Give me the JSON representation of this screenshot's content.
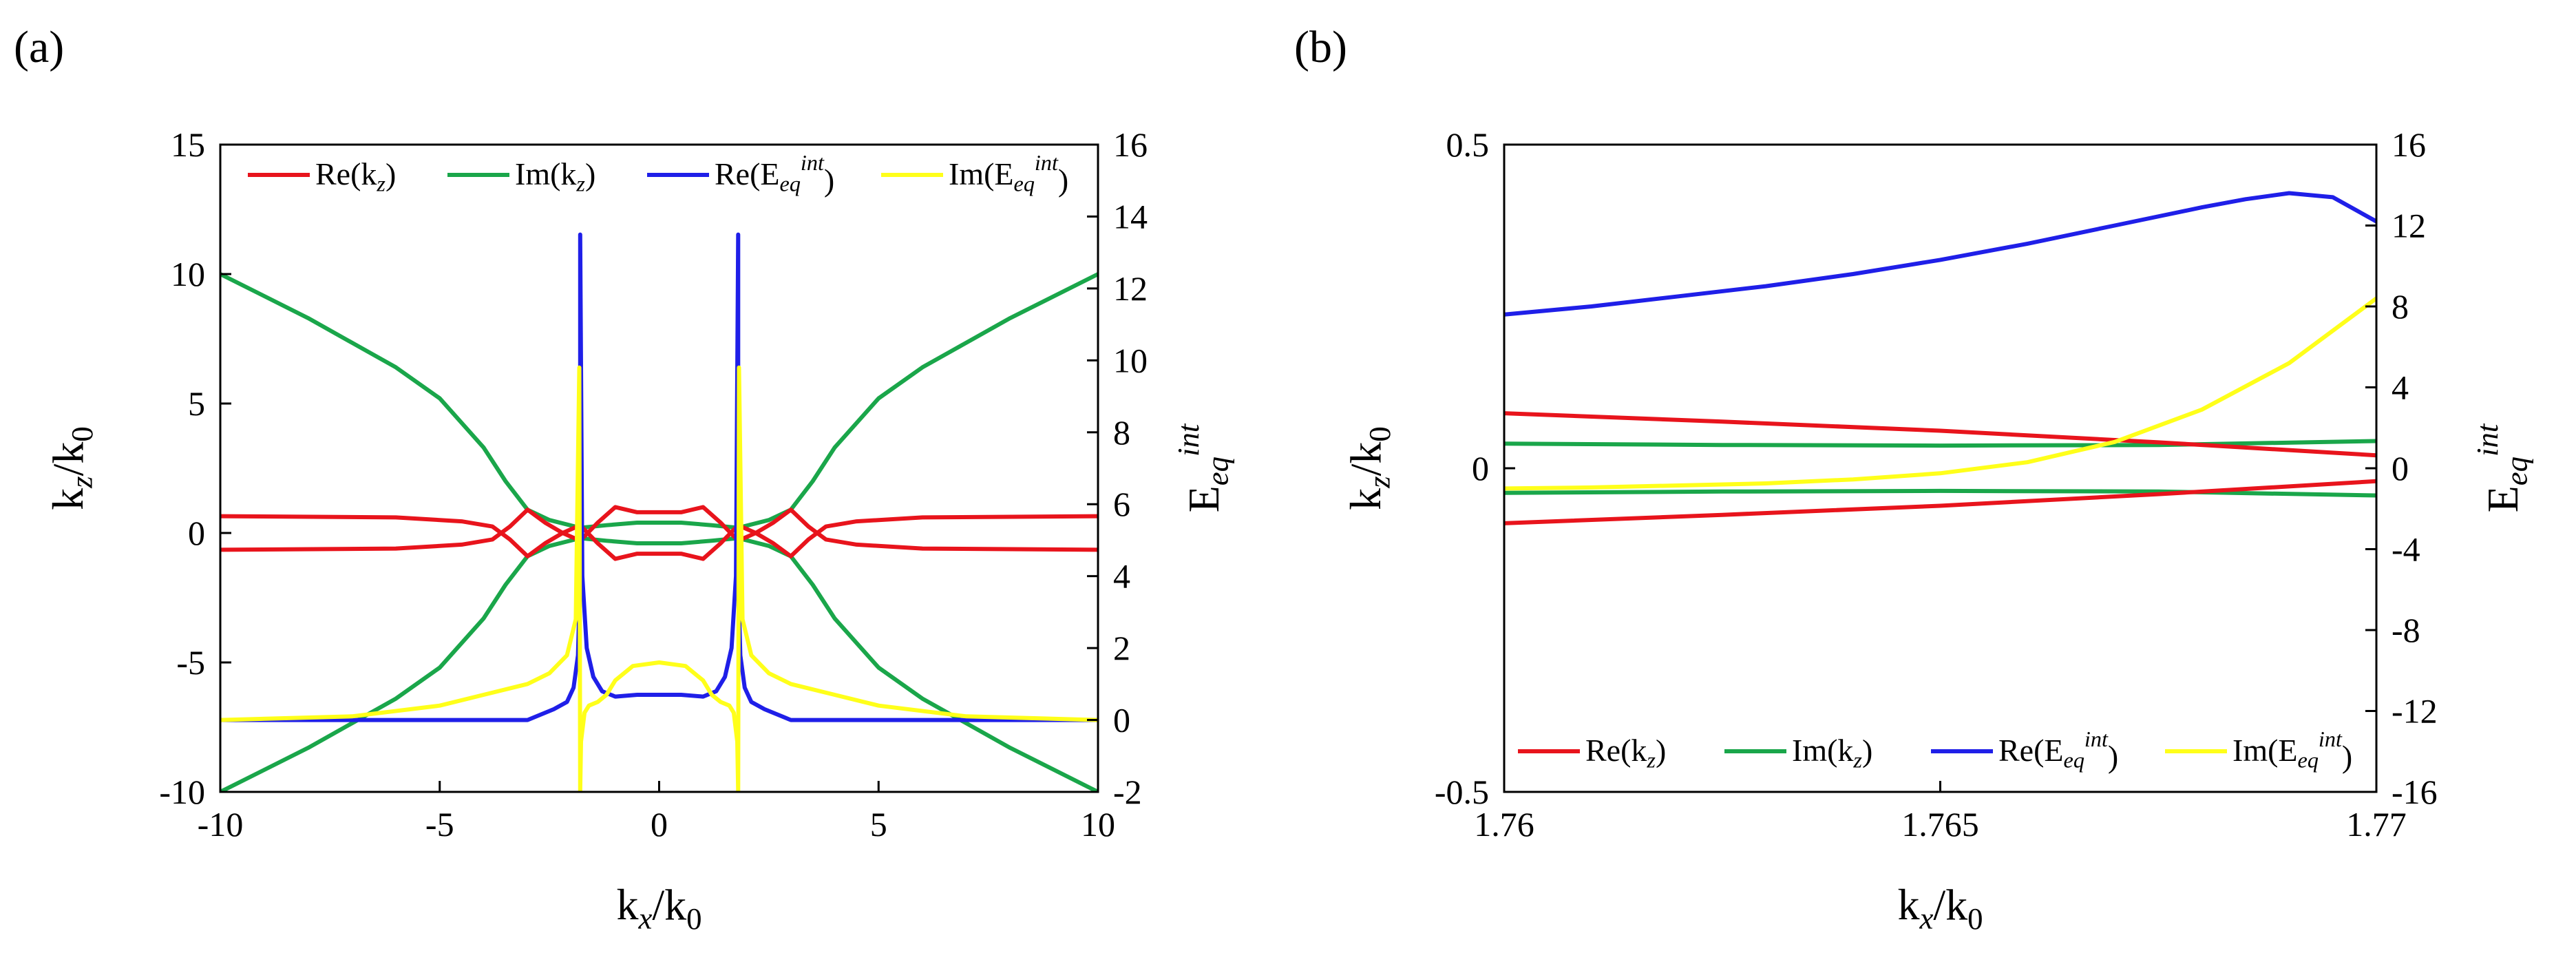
{
  "chart_data": [
    {
      "panel_label": "(a)",
      "type": "line",
      "xlabel": "k_x/k_0",
      "ylabel": "k_z/k_0",
      "y2label": "E_eq^int",
      "xlim": [
        -10,
        10
      ],
      "ylim": [
        -10,
        15
      ],
      "y2lim": [
        -2,
        16
      ],
      "xticks": [
        "-10",
        "-5",
        "0",
        "5",
        "10"
      ],
      "yticks": [
        "-10",
        "-5",
        "0",
        "5",
        "10",
        "15"
      ],
      "y2ticks": [
        "-2",
        "0",
        "2",
        "4",
        "6",
        "8",
        "10",
        "12",
        "14",
        "16"
      ],
      "legend_position": "top",
      "series": [
        {
          "name": "Re(k_z)",
          "color": "#e8141c",
          "axis": "left",
          "branches": [
            {
              "x": [
                -10,
                -6,
                -4.5,
                -3.8,
                -3.4,
                -3.0,
                -2.6,
                -2.2,
                -1.8,
                -1.4,
                -1.0,
                -0.5,
                0,
                0.5,
                1.0,
                1.4,
                1.8,
                2.2,
                2.6,
                3.0,
                3.4,
                3.8,
                4.5,
                6,
                10
              ],
              "y": [
                0.65,
                0.6,
                0.45,
                0.25,
                -0.25,
                -0.9,
                -0.4,
                0,
                0.3,
                -0.4,
                -1.0,
                -0.8,
                -0.8,
                -0.8,
                -1.0,
                -0.4,
                0.3,
                0,
                -0.4,
                -0.9,
                -0.25,
                0.25,
                0.45,
                0.6,
                0.65
              ]
            },
            {
              "x": [
                -10,
                -6,
                -4.5,
                -3.8,
                -3.4,
                -3.0,
                -2.6,
                -2.2,
                -1.8,
                -1.4,
                -1.0,
                -0.5,
                0,
                0.5,
                1.0,
                1.4,
                1.8,
                2.2,
                2.6,
                3.0,
                3.4,
                3.8,
                4.5,
                6,
                10
              ],
              "y": [
                -0.65,
                -0.6,
                -0.45,
                -0.25,
                0.25,
                0.9,
                0.4,
                0,
                -0.3,
                0.4,
                1.0,
                0.8,
                0.8,
                0.8,
                1.0,
                0.4,
                -0.3,
                0,
                0.4,
                0.9,
                0.25,
                -0.25,
                -0.45,
                -0.6,
                -0.65
              ]
            }
          ]
        },
        {
          "name": "Im(k_z)",
          "color": "#1aa64a",
          "axis": "left",
          "branches": [
            {
              "x": [
                -10,
                -8,
                -6,
                -5,
                -4,
                -3.5,
                -3.0,
                -2.5,
                -1.8,
                -1.2,
                -0.5,
                0,
                0.5,
                1.2,
                1.8,
                2.5,
                3.0,
                3.5,
                4,
                5,
                6,
                8,
                10
              ],
              "y": [
                10,
                8.3,
                6.4,
                5.2,
                3.3,
                2.0,
                0.9,
                0.5,
                0.2,
                0.3,
                0.4,
                0.4,
                0.4,
                0.3,
                0.2,
                0.5,
                0.9,
                2.0,
                3.3,
                5.2,
                6.4,
                8.3,
                10
              ]
            },
            {
              "x": [
                -10,
                -8,
                -6,
                -5,
                -4,
                -3.5,
                -3.0,
                -2.5,
                -1.8,
                -1.2,
                -0.5,
                0,
                0.5,
                1.2,
                1.8,
                2.5,
                3.0,
                3.5,
                4,
                5,
                6,
                8,
                10
              ],
              "y": [
                -10,
                -8.3,
                -6.4,
                -5.2,
                -3.3,
                -2.0,
                -0.9,
                -0.5,
                -0.2,
                -0.3,
                -0.4,
                -0.4,
                -0.4,
                -0.3,
                -0.2,
                -0.5,
                -0.9,
                -2.0,
                -3.3,
                -5.2,
                -6.4,
                -8.3,
                -10
              ]
            }
          ]
        },
        {
          "name": "Re(E_eq^int)",
          "color": "#1f1fe8",
          "axis": "right",
          "branches": [
            {
              "x": [
                -10,
                -5,
                -3,
                -2.4,
                -2.1,
                -1.95,
                -1.85,
                -1.8,
                -1.8,
                -1.75,
                -1.65,
                -1.5,
                -1.3,
                -1.0,
                -0.5,
                0,
                0.5,
                1.0,
                1.3,
                1.5,
                1.65,
                1.75,
                1.8,
                1.8,
                1.85,
                1.95,
                2.1,
                2.4,
                3,
                5,
                10
              ],
              "y": [
                0,
                0,
                0,
                0.3,
                0.5,
                0.9,
                1.8,
                4.0,
                13.5,
                4.0,
                2.0,
                1.2,
                0.8,
                0.65,
                0.7,
                0.7,
                0.7,
                0.65,
                0.8,
                1.2,
                2.0,
                4.0,
                13.5,
                4.0,
                1.8,
                0.9,
                0.5,
                0.3,
                0,
                0,
                0
              ]
            }
          ]
        },
        {
          "name": "Im(E_eq^int)",
          "color": "#ffff1a",
          "axis": "right",
          "branches": [
            {
              "x": [
                -10,
                -7,
                -5,
                -4,
                -3,
                -2.5,
                -2.1,
                -1.9,
                -1.82,
                -1.8,
                -1.78,
                -1.75,
                -1.7,
                -1.6,
                -1.4,
                -1.2,
                -1.0,
                -0.6,
                0,
                0.6,
                1.0,
                1.2,
                1.4,
                1.6,
                1.7,
                1.75,
                1.78,
                1.8,
                1.82,
                1.9,
                2.1,
                2.5,
                3,
                4,
                5,
                7,
                10
              ],
              "y": [
                0,
                0.1,
                0.4,
                0.7,
                1.0,
                1.3,
                1.8,
                2.8,
                9.8,
                -2.0,
                -0.6,
                -0.3,
                0.2,
                0.4,
                0.5,
                0.7,
                1.1,
                1.5,
                1.6,
                1.5,
                1.1,
                0.7,
                0.5,
                0.4,
                0.2,
                -0.3,
                -0.6,
                -2.0,
                9.8,
                2.8,
                1.8,
                1.3,
                1.0,
                0.7,
                0.4,
                0.1,
                0
              ]
            }
          ]
        }
      ]
    },
    {
      "panel_label": "(b)",
      "type": "line",
      "xlabel": "k_x/k_0",
      "ylabel": "k_z/k_0",
      "y2label": "E_eq^int",
      "xlim": [
        1.76,
        1.77
      ],
      "ylim": [
        -0.5,
        0.5
      ],
      "y2lim": [
        -16,
        16
      ],
      "xticks": [
        "1.76",
        "1.765",
        "1.77"
      ],
      "yticks": [
        "-0.5",
        "0",
        "0.5"
      ],
      "y2ticks": [
        "-16",
        "-12",
        "-8",
        "-4",
        "0",
        "4",
        "8",
        "12",
        "16"
      ],
      "legend_position": "bottom",
      "series": [
        {
          "name": "Re(k_z)",
          "color": "#e8141c",
          "axis": "left",
          "branches": [
            {
              "x": [
                1.76,
                1.7625,
                1.765,
                1.7675,
                1.77
              ],
              "y": [
                0.085,
                0.072,
                0.058,
                0.04,
                0.02
              ]
            },
            {
              "x": [
                1.76,
                1.7625,
                1.765,
                1.7675,
                1.77
              ],
              "y": [
                -0.085,
                -0.072,
                -0.058,
                -0.04,
                -0.02
              ]
            }
          ]
        },
        {
          "name": "Im(k_z)",
          "color": "#1aa64a",
          "axis": "left",
          "branches": [
            {
              "x": [
                1.76,
                1.7625,
                1.765,
                1.7675,
                1.77
              ],
              "y": [
                0.038,
                0.036,
                0.035,
                0.036,
                0.042
              ]
            },
            {
              "x": [
                1.76,
                1.7625,
                1.765,
                1.7675,
                1.77
              ],
              "y": [
                -0.038,
                -0.036,
                -0.035,
                -0.036,
                -0.042
              ]
            }
          ]
        },
        {
          "name": "Re(E_eq^int)",
          "color": "#1f1fe8",
          "axis": "right",
          "branches": [
            {
              "x": [
                1.76,
                1.761,
                1.762,
                1.763,
                1.764,
                1.765,
                1.766,
                1.767,
                1.768,
                1.7685,
                1.769,
                1.7695,
                1.77
              ],
              "y": [
                7.6,
                8.0,
                8.5,
                9.0,
                9.6,
                10.3,
                11.1,
                12.0,
                12.9,
                13.3,
                13.6,
                13.4,
                12.2
              ]
            }
          ]
        },
        {
          "name": "Im(E_eq^int)",
          "color": "#ffff1a",
          "axis": "right",
          "branches": [
            {
              "x": [
                1.76,
                1.761,
                1.762,
                1.763,
                1.764,
                1.765,
                1.766,
                1.767,
                1.768,
                1.769,
                1.77
              ],
              "y": [
                -1.0,
                -0.95,
                -0.85,
                -0.75,
                -0.55,
                -0.25,
                0.3,
                1.3,
                2.9,
                5.2,
                8.4
              ]
            }
          ]
        }
      ]
    }
  ]
}
